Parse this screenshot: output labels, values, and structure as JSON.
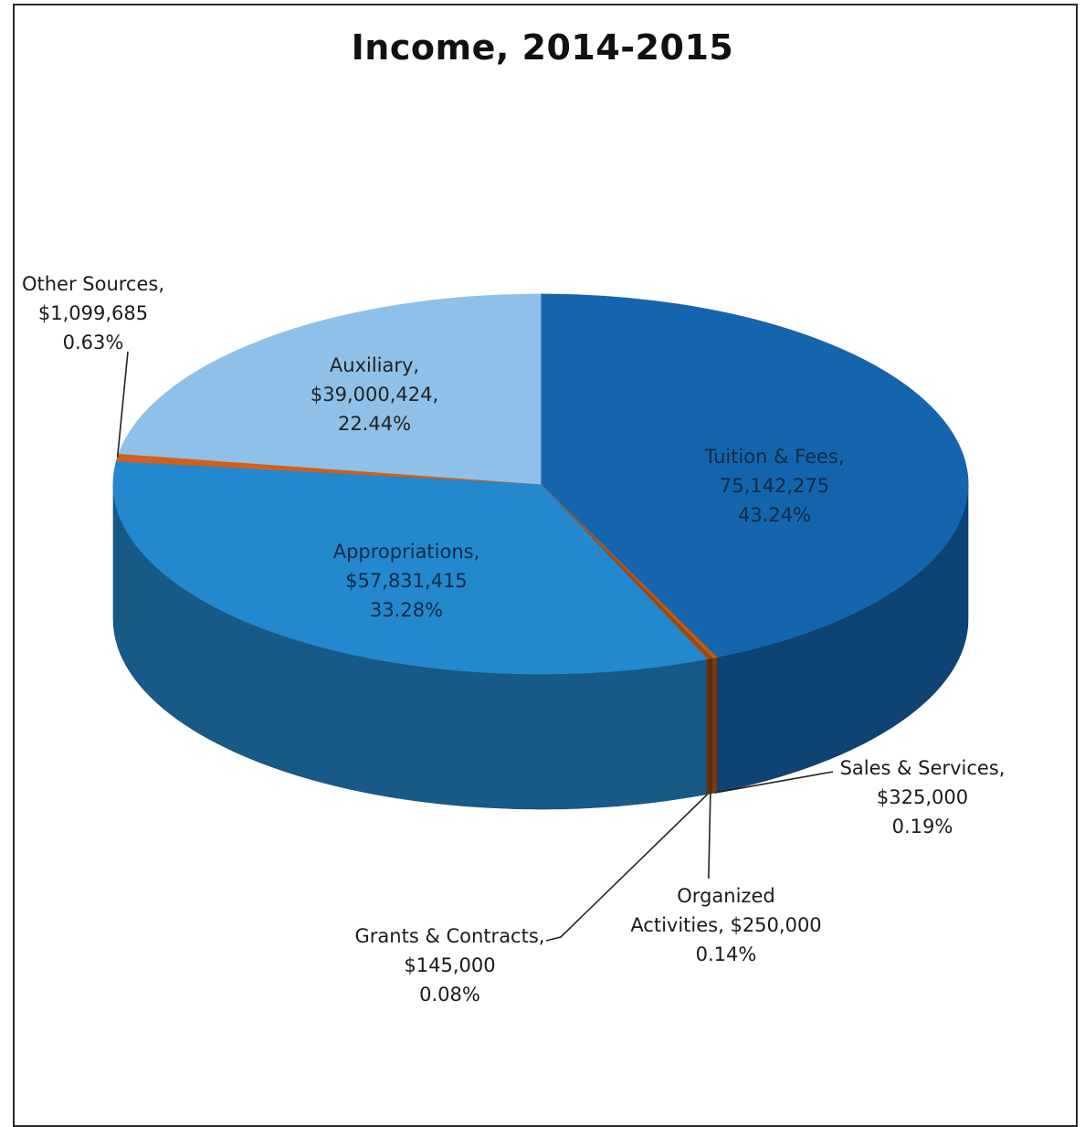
{
  "chart_data": {
    "type": "pie",
    "title": "Income, 2014-2015",
    "slices": [
      {
        "label": "Tuition & Fees,",
        "amount": "75,142,275",
        "percent": "43.24%",
        "value": 43.24,
        "color": "#1565ae"
      },
      {
        "label": "Sales & Services,",
        "amount": "$325,000",
        "percent": "0.19%",
        "value": 0.19,
        "color": "#c25a14"
      },
      {
        "label": "Organized",
        "label2": "Activities, $250,000",
        "percent": "0.14%",
        "value": 0.14,
        "color": "#8a4a1a"
      },
      {
        "label": "Grants & Contracts,",
        "amount": "$145,000",
        "percent": "0.08%",
        "value": 0.08,
        "color": "#a05022"
      },
      {
        "label": "Appropriations,",
        "amount": "$57,831,415",
        "percent": "33.28%",
        "value": 33.28,
        "color": "#2388cd"
      },
      {
        "label": "Other Sources,",
        "amount": "$1,099,685",
        "percent": "0.63%",
        "value": 0.63,
        "color": "#d35f1c"
      },
      {
        "label": "Auxiliary,",
        "amount": "$39,000,424,",
        "percent": "22.44%",
        "value": 22.44,
        "color": "#8fc1e8"
      }
    ],
    "legend": "none"
  }
}
